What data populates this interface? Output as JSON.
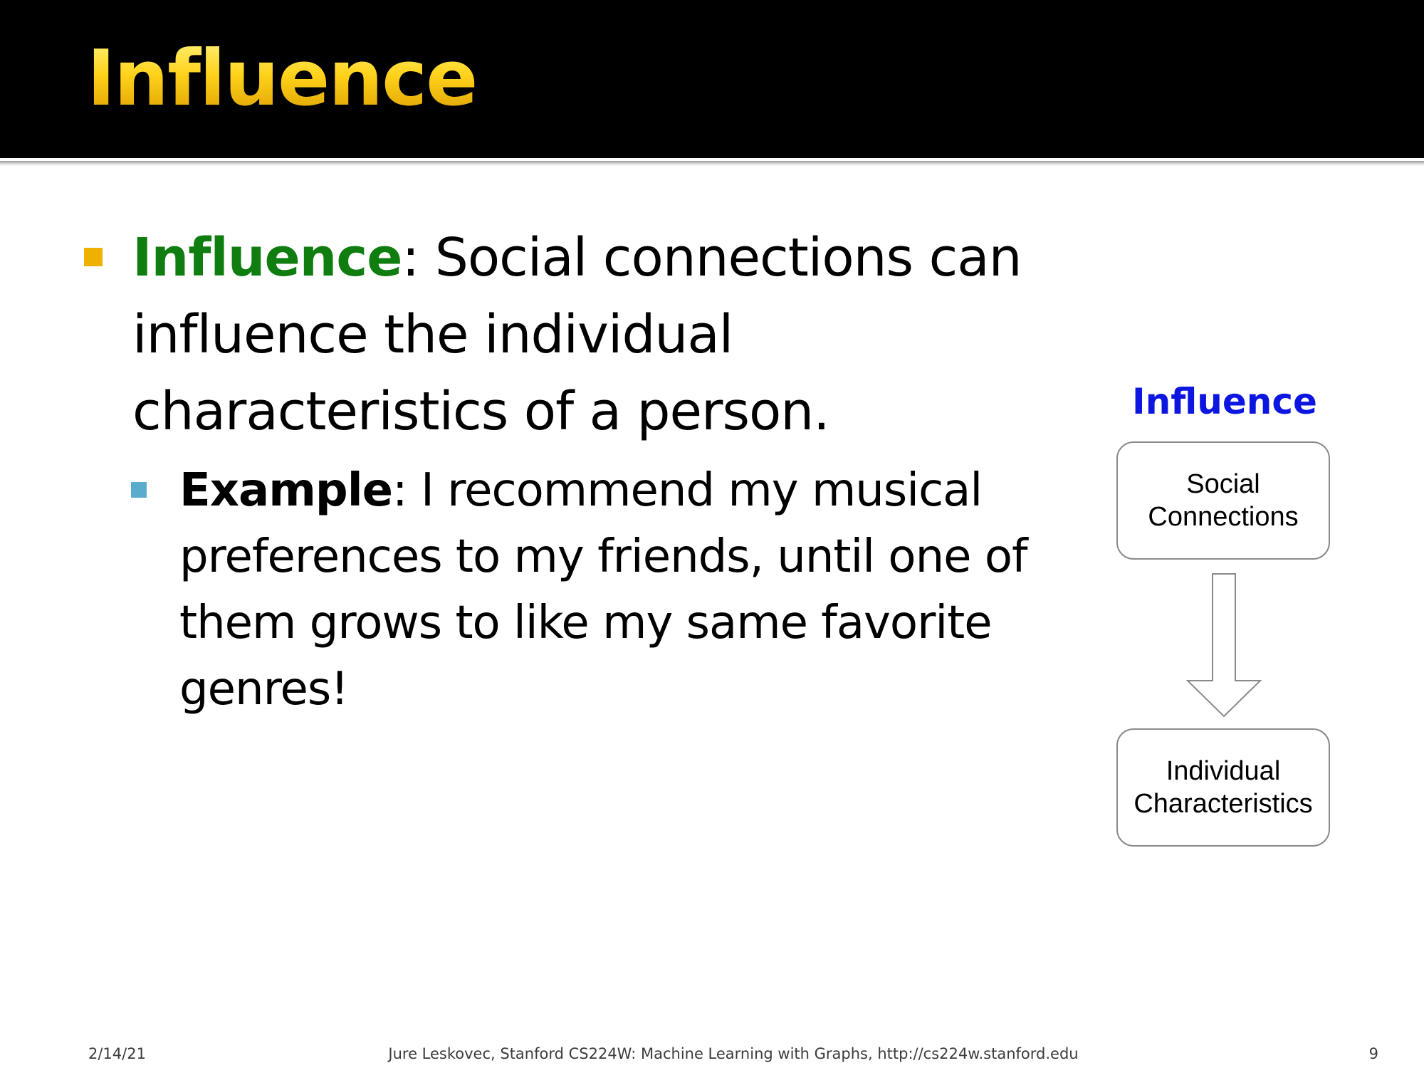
{
  "slide": {
    "title": "Influence",
    "bullet1": {
      "keyword": "Influence",
      "text": ": Social connections can influence the individual characteristics of a person."
    },
    "bullet2": {
      "keyword": "Example",
      "text": ": I recommend my musical preferences to my friends, until one of them grows to like my same favorite genres!"
    },
    "diagram": {
      "title": "Influence",
      "node_top": "Social\nConnections",
      "node_bottom": "Individual\nCharacteristics"
    },
    "footer": {
      "date": "2/14/21",
      "center": "Jure Leskovec, Stanford CS224W: Machine Learning with Graphs, http://cs224w.stanford.edu",
      "page": "9"
    }
  },
  "colors": {
    "title_bar": "#000000",
    "title_gold": "#ffd21a",
    "keyword_green": "#0f7d0f",
    "diagram_title_blue": "#0d16e0",
    "bullet1_square": "#f0b000",
    "bullet2_square": "#5aaccc"
  }
}
